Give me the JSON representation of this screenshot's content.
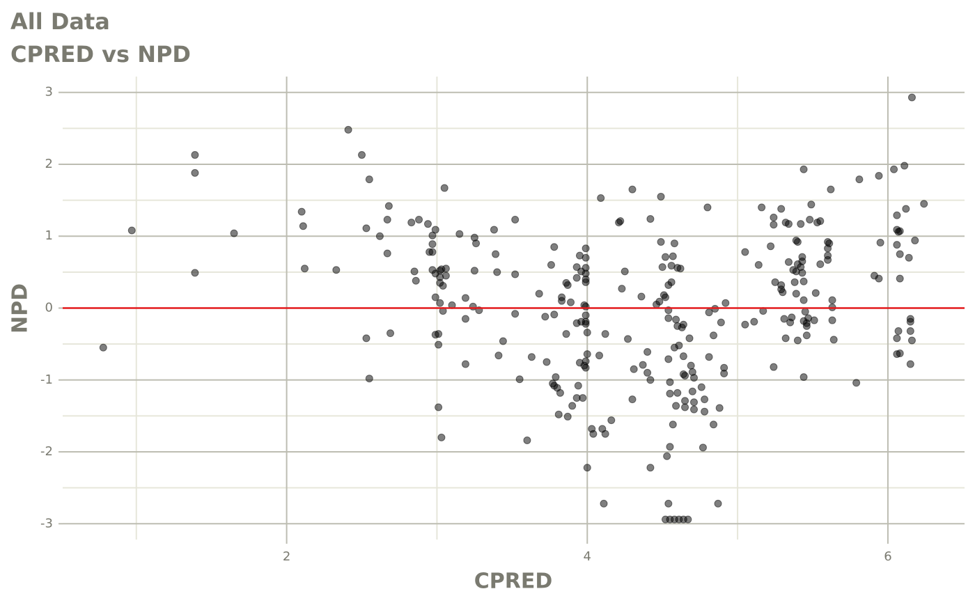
{
  "chart_data": {
    "type": "scatter",
    "title": "All Data",
    "subtitle": "CPRED vs NPD",
    "x_label": "CPRED",
    "y_label": "NPD",
    "xlim": [
      0.51,
      6.51
    ],
    "ylim": [
      -3.22,
      3.22
    ],
    "xticks": [
      2,
      4,
      6
    ],
    "yticks": [
      -3,
      -2,
      -1,
      0,
      1,
      2,
      3
    ],
    "x_minor_ticks": [
      1,
      3,
      5
    ],
    "y_minor_ticks": [
      -2.5,
      -1.5,
      -0.5,
      0.5,
      1.5,
      2.5
    ],
    "grid": true,
    "color": "#000000",
    "alpha": 0.5,
    "hline": 0,
    "hline_color": "#e31a1c",
    "x": [
      0.78,
      0.97,
      1.39,
      1.39,
      1.39,
      1.65,
      2.1,
      2.11,
      2.12,
      2.33,
      2.41,
      2.5,
      2.55,
      2.53,
      2.53,
      2.55,
      2.62,
      2.67,
      2.68,
      2.67,
      2.69,
      2.83,
      2.88,
      2.94,
      2.85,
      2.86,
      2.97,
      2.97,
      2.95,
      2.97,
      2.99,
      3.05,
      2.97,
      2.99,
      3.02,
      3.03,
      3.06,
      3.02,
      3.06,
      3.02,
      3.04,
      2.99,
      3.02,
      3.04,
      3.1,
      2.99,
      3.01,
      3.01,
      3.01,
      3.03,
      3.15,
      3.25,
      3.26,
      3.19,
      3.19,
      3.19,
      3.24,
      3.25,
      3.28,
      3.38,
      3.39,
      3.4,
      3.41,
      3.44,
      3.52,
      3.52,
      3.52,
      3.55,
      3.6,
      3.63,
      3.68,
      3.72,
      3.73,
      3.76,
      3.78,
      3.78,
      3.77,
      3.78,
      3.79,
      3.8,
      3.82,
      3.81,
      3.83,
      3.83,
      3.86,
      3.87,
      3.86,
      3.87,
      3.89,
      3.9,
      3.93,
      3.93,
      3.93,
      3.94,
      3.93,
      3.95,
      3.95,
      3.96,
      3.96,
      3.97,
      3.99,
      3.99,
      3.99,
      3.99,
      3.99,
      3.99,
      3.98,
      3.99,
      3.99,
      3.99,
      3.99,
      3.98,
      3.99,
      4.0,
      3.99,
      4.0,
      4.0,
      4.03,
      4.04,
      4.09,
      4.08,
      4.1,
      4.11,
      4.12,
      4.12,
      4.16,
      4.21,
      4.22,
      4.23,
      4.25,
      4.27,
      4.3,
      4.31,
      4.3,
      4.36,
      4.37,
      4.4,
      4.4,
      4.42,
      4.42,
      4.42,
      4.46,
      4.48,
      4.49,
      4.49,
      4.5,
      4.51,
      4.52,
      4.52,
      4.54,
      4.54,
      4.54,
      4.54,
      4.53,
      4.54,
      4.55,
      4.55,
      4.55,
      4.56,
      4.56,
      4.57,
      4.57,
      4.58,
      4.59,
      4.58,
      4.59,
      4.6,
      4.6,
      4.6,
      4.61,
      4.62,
      4.63,
      4.64,
      4.64,
      4.64,
      4.65,
      4.65,
      4.65,
      4.68,
      4.69,
      4.7,
      4.7,
      4.71,
      4.71,
      4.71,
      4.76,
      4.78,
      4.78,
      4.77,
      4.8,
      4.81,
      4.81,
      4.84,
      4.84,
      4.85,
      4.87,
      4.88,
      4.89,
      4.91,
      4.91,
      4.92,
      4.52,
      4.55,
      4.58,
      4.61,
      4.64,
      4.67,
      5.05,
      5.05,
      5.11,
      5.14,
      5.16,
      5.17,
      5.22,
      5.24,
      5.24,
      5.25,
      5.24,
      5.29,
      5.29,
      5.29,
      5.3,
      5.31,
      5.32,
      5.32,
      5.34,
      5.34,
      5.35,
      5.36,
      5.37,
      5.38,
      5.39,
      5.39,
      5.4,
      5.39,
      5.4,
      5.42,
      5.4,
      5.42,
      5.43,
      5.43,
      5.43,
      5.44,
      5.44,
      5.45,
      5.44,
      5.44,
      5.44,
      5.46,
      5.46,
      5.47,
      5.46,
      5.48,
      5.49,
      5.51,
      5.52,
      5.53,
      5.55,
      5.55,
      5.6,
      5.6,
      5.6,
      5.6,
      5.61,
      5.62,
      5.63,
      5.63,
      5.63,
      5.64,
      5.79,
      5.81,
      5.91,
      5.94,
      5.94,
      5.95,
      6.04,
      6.06,
      6.06,
      6.06,
      6.06,
      6.06,
      6.07,
      6.07,
      6.08,
      6.08,
      6.08,
      6.08,
      6.11,
      6.12,
      6.14,
      6.15,
      6.15,
      6.15,
      6.15,
      6.16,
      6.16,
      6.18,
      6.24
    ],
    "y": [
      -0.55,
      1.08,
      2.13,
      1.88,
      0.49,
      1.04,
      1.34,
      1.14,
      0.55,
      0.53,
      2.48,
      2.13,
      1.79,
      1.11,
      -0.42,
      -0.98,
      1.0,
      1.23,
      1.42,
      0.76,
      -0.35,
      1.19,
      1.23,
      1.17,
      0.51,
      0.38,
      1.01,
      0.89,
      0.78,
      0.78,
      1.09,
      1.67,
      0.53,
      0.48,
      0.52,
      0.54,
      0.55,
      0.43,
      0.45,
      0.35,
      0.31,
      0.15,
      0.07,
      -0.04,
      0.04,
      -0.37,
      -0.36,
      -0.51,
      -1.38,
      -1.8,
      1.03,
      0.98,
      0.9,
      0.14,
      -0.15,
      -0.78,
      0.02,
      0.52,
      -0.03,
      1.09,
      0.75,
      0.5,
      -0.66,
      -0.46,
      1.23,
      0.47,
      -0.08,
      -0.99,
      -1.84,
      -0.68,
      0.2,
      -0.12,
      -0.75,
      0.6,
      0.85,
      -0.09,
      -1.05,
      -1.08,
      -0.96,
      -1.11,
      -1.18,
      -1.48,
      0.15,
      0.1,
      0.35,
      0.32,
      -0.36,
      -1.51,
      0.08,
      -1.36,
      0.57,
      0.42,
      -0.21,
      -1.08,
      -1.25,
      0.73,
      -0.76,
      0.51,
      -0.19,
      -1.25,
      0.83,
      0.7,
      0.56,
      0.48,
      0.4,
      0.36,
      0.04,
      0.02,
      -0.1,
      -0.19,
      -0.22,
      -0.8,
      -0.74,
      -0.64,
      -0.83,
      -2.22,
      -0.34,
      -1.68,
      -1.75,
      1.53,
      -0.66,
      -1.68,
      -2.72,
      -0.36,
      -1.75,
      -1.56,
      1.19,
      1.21,
      0.27,
      0.51,
      -0.43,
      1.65,
      -0.85,
      -1.27,
      0.16,
      -0.79,
      -0.61,
      -0.9,
      1.24,
      -1.0,
      -2.22,
      0.05,
      0.09,
      1.55,
      0.92,
      0.57,
      0.18,
      0.15,
      0.71,
      0.32,
      -0.03,
      -0.14,
      -0.71,
      -2.06,
      -2.72,
      -1.19,
      -1.93,
      -1.03,
      0.36,
      0.59,
      0.72,
      -1.62,
      0.9,
      -0.16,
      -0.55,
      -1.36,
      0.56,
      -0.25,
      -1.18,
      -0.52,
      0.55,
      -0.27,
      -0.67,
      -0.23,
      -0.92,
      -0.94,
      -1.29,
      -1.38,
      -0.42,
      -0.8,
      -0.89,
      -1.16,
      -1.31,
      -0.97,
      -1.41,
      -1.1,
      -1.27,
      -1.44,
      -1.94,
      1.4,
      -0.06,
      -0.68,
      -0.38,
      -1.62,
      -0.01,
      -2.72,
      -1.39,
      -0.2,
      -0.83,
      -0.91,
      0.07,
      -2.94,
      -2.94,
      -2.94,
      -2.94,
      -2.94,
      -2.94,
      -0.23,
      0.78,
      -0.19,
      0.6,
      1.4,
      -0.04,
      0.86,
      1.26,
      1.16,
      0.36,
      -0.82,
      1.38,
      0.32,
      0.26,
      0.22,
      -0.15,
      -0.42,
      1.19,
      1.17,
      0.64,
      -0.2,
      -0.13,
      0.53,
      0.36,
      0.51,
      0.94,
      0.92,
      0.2,
      0.61,
      0.57,
      -0.45,
      1.17,
      0.49,
      0.71,
      0.65,
      0.37,
      -0.18,
      -0.05,
      0.11,
      1.93,
      -0.96,
      -0.38,
      -0.21,
      -0.14,
      -0.25,
      1.23,
      1.44,
      -0.17,
      0.21,
      1.19,
      1.21,
      0.61,
      0.83,
      0.92,
      0.73,
      0.67,
      0.9,
      1.65,
      0.11,
      0.01,
      -0.17,
      -0.44,
      -1.04,
      1.79,
      0.45,
      1.84,
      0.41,
      0.91,
      1.93,
      0.88,
      1.29,
      -0.42,
      -0.64,
      1.09,
      1.06,
      -0.32,
      0.75,
      1.07,
      0.41,
      -0.63,
      1.98,
      1.38,
      0.7,
      -0.15,
      -0.19,
      -0.32,
      -0.78,
      -0.45,
      2.93,
      0.94,
      1.45
    ]
  }
}
